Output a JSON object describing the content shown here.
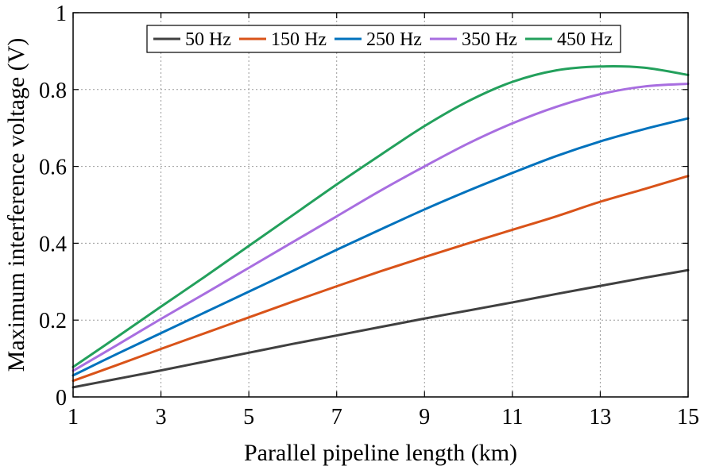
{
  "chart_data": {
    "type": "line",
    "xlabel": "Parallel pipeline length (km)",
    "ylabel": "Maximum interference voltage (V)",
    "xlim": [
      1,
      15
    ],
    "ylim": [
      0,
      1
    ],
    "xticks": [
      "1",
      "3",
      "5",
      "7",
      "9",
      "11",
      "13",
      "15"
    ],
    "yticks": [
      "0",
      "0.2",
      "0.4",
      "0.6",
      "0.8",
      "1"
    ],
    "grid": true,
    "legend_position": "top-right",
    "x": [
      1,
      2,
      3,
      4,
      5,
      6,
      7,
      8,
      9,
      10,
      11,
      12,
      13,
      14,
      15
    ],
    "series": [
      {
        "name": "50 Hz",
        "color": "#404040",
        "values": [
          0.025,
          0.047,
          0.069,
          0.092,
          0.115,
          0.138,
          0.16,
          0.182,
          0.204,
          0.225,
          0.246,
          0.268,
          0.289,
          0.31,
          0.33
        ]
      },
      {
        "name": "150 Hz",
        "color": "#d95319",
        "values": [
          0.042,
          0.083,
          0.125,
          0.166,
          0.207,
          0.248,
          0.288,
          0.327,
          0.364,
          0.4,
          0.435,
          0.47,
          0.508,
          0.541,
          0.575
        ]
      },
      {
        "name": "250 Hz",
        "color": "#0072bd",
        "values": [
          0.056,
          0.112,
          0.166,
          0.22,
          0.274,
          0.328,
          0.383,
          0.436,
          0.488,
          0.537,
          0.583,
          0.627,
          0.665,
          0.697,
          0.725
        ]
      },
      {
        "name": "350 Hz",
        "color": "#a86ee0",
        "values": [
          0.068,
          0.135,
          0.203,
          0.269,
          0.336,
          0.403,
          0.47,
          0.537,
          0.6,
          0.66,
          0.712,
          0.755,
          0.788,
          0.808,
          0.815
        ]
      },
      {
        "name": "450 Hz",
        "color": "#23a05c",
        "values": [
          0.078,
          0.156,
          0.235,
          0.313,
          0.393,
          0.473,
          0.553,
          0.63,
          0.705,
          0.77,
          0.82,
          0.85,
          0.86,
          0.857,
          0.838
        ]
      }
    ]
  }
}
